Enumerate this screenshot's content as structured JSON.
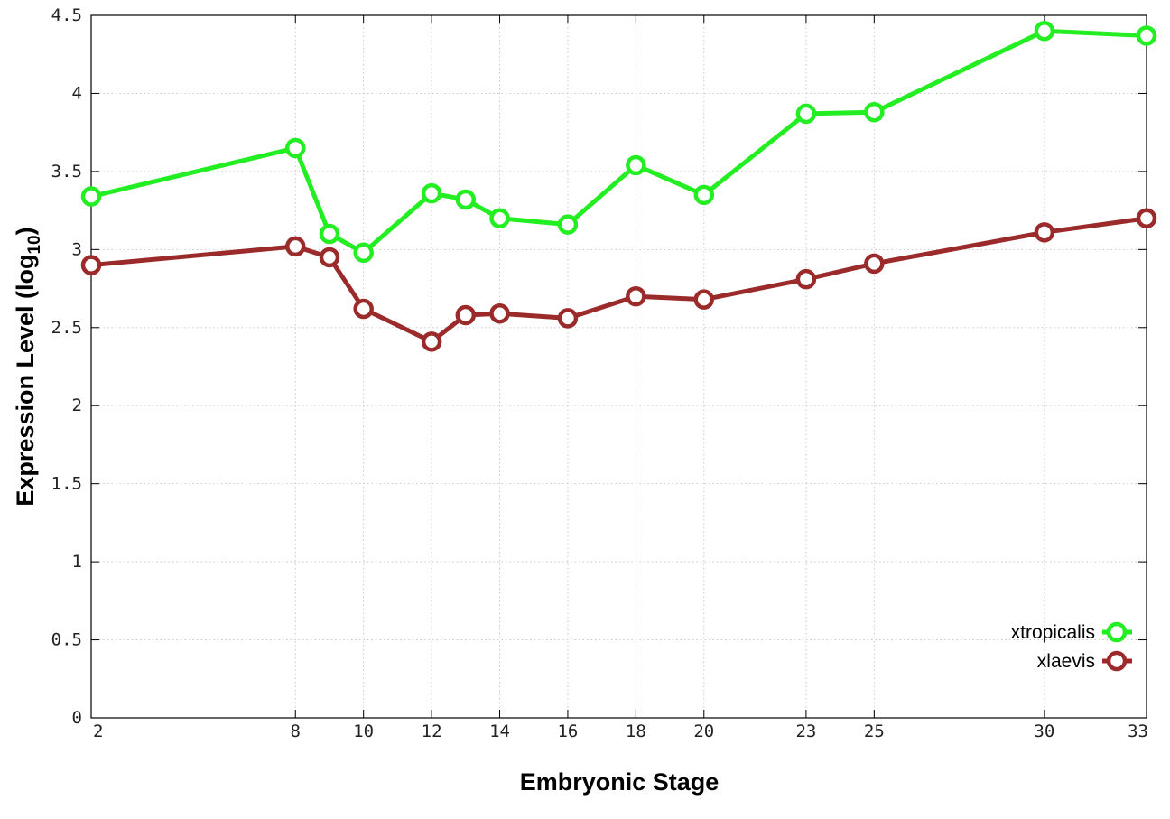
{
  "chart_data": {
    "type": "line",
    "xlabel": "Embryonic Stage",
    "ylabel_main": "Expression Level (log",
    "ylabel_sub": "10",
    "ylabel_close": ")",
    "x": [
      "2",
      "8",
      "9",
      "10",
      "12",
      "13",
      "14",
      "16",
      "18",
      "20",
      "23",
      "25",
      "30",
      "33"
    ],
    "x_tick_labels": [
      "2",
      "8",
      "10",
      "12",
      "14",
      "16",
      "18",
      "20",
      "23",
      "25",
      "30",
      "33"
    ],
    "y_ticks": [
      0,
      0.5,
      1,
      1.5,
      2,
      2.5,
      3,
      3.5,
      4,
      4.5
    ],
    "y_tick_labels": [
      "0",
      "0.5",
      "1",
      "1.5",
      "2",
      "2.5",
      "3",
      "3.5",
      "4",
      "4.5"
    ],
    "ylim": [
      0,
      4.5
    ],
    "grid": true,
    "legend_position": "bottom-right",
    "series": [
      {
        "name": "xtropicalis",
        "color": "#22ee22",
        "values": [
          3.34,
          3.65,
          3.1,
          2.98,
          3.36,
          3.32,
          3.2,
          3.16,
          3.54,
          3.35,
          3.87,
          3.88,
          4.4,
          4.37
        ]
      },
      {
        "name": "xlaevis",
        "color": "#9b2a2a",
        "values": [
          2.9,
          3.02,
          2.95,
          2.62,
          2.41,
          2.58,
          2.59,
          2.56,
          2.7,
          2.68,
          2.81,
          2.91,
          3.11,
          3.2
        ]
      }
    ]
  }
}
